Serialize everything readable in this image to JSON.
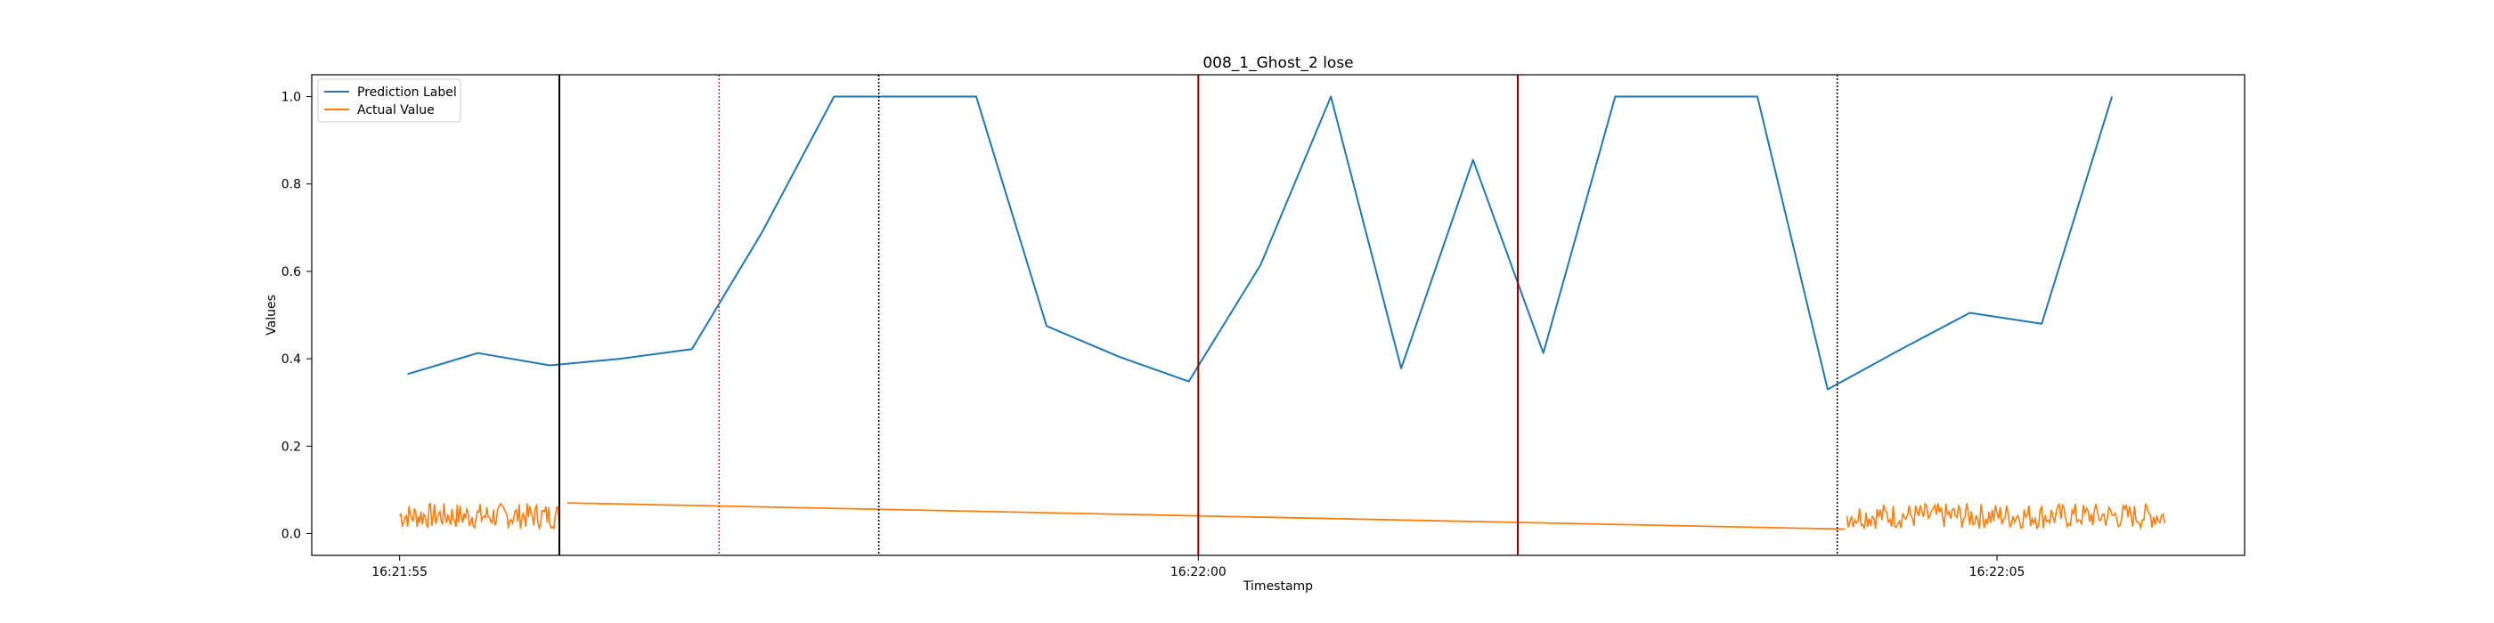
{
  "chart_data": {
    "type": "line",
    "title": "008_1_Ghost_2 lose",
    "xlabel": "Timestamp",
    "ylabel": "Values",
    "xlim": [
      -0.55,
      11.55
    ],
    "ylim": [
      -0.05,
      1.05
    ],
    "yticks": [
      0.0,
      0.2,
      0.4,
      0.6,
      0.8,
      1.0
    ],
    "ytick_labels": [
      "0.0",
      "0.2",
      "0.4",
      "0.6",
      "0.8",
      "1.0"
    ],
    "xticks": [
      0,
      5,
      10
    ],
    "xtick_labels": [
      "16:21:55",
      "16:22:00",
      "16:22:05"
    ],
    "legend_position": "upper-left",
    "colors": {
      "prediction": "#1f77b4",
      "actual": "#ff7f0e",
      "line_black": "#000000",
      "line_red": "#d62728",
      "line_darkred": "#8b0000"
    },
    "series": [
      {
        "name": "Prediction Label",
        "color": "#1f77b4",
        "x": [
          0.05,
          0.49,
          0.94,
          1.38,
          1.83,
          2.27,
          2.72,
          3.16,
          3.61,
          4.05,
          4.5,
          4.94,
          5.39,
          5.83,
          6.27,
          6.72,
          7.16,
          7.61,
          8.05,
          8.5,
          8.94,
          9.39,
          9.83,
          10.28,
          10.72
        ],
        "y": [
          0.365,
          0.413,
          0.385,
          0.4,
          0.422,
          0.69,
          1.0,
          1.0,
          1.0,
          0.475,
          0.405,
          0.348,
          0.615,
          1.0,
          0.378,
          0.855,
          0.413,
          1.0,
          1.0,
          1.0,
          0.33,
          0.42,
          0.505,
          0.48,
          1.0
        ]
      },
      {
        "name": "Actual Value",
        "color": "#ff7f0e",
        "noisy_segments": [
          {
            "x_start": 0.0,
            "x_end": 1.0,
            "count": 120,
            "ymin": 0.0,
            "ymax": 0.07
          },
          {
            "x_start": 9.06,
            "x_end": 11.05,
            "count": 200,
            "ymin": 0.0,
            "ymax": 0.07
          }
        ],
        "trend_line": {
          "x": [
            1.05,
            9.05
          ],
          "y": [
            0.07,
            0.01
          ]
        }
      }
    ],
    "vertical_lines": [
      {
        "x": 1.0,
        "style": "solid",
        "color": "#000000"
      },
      {
        "x": 2.0,
        "style": "dotted",
        "color": "#d62728"
      },
      {
        "x": 3.0,
        "style": "dotted",
        "color": "#000000"
      },
      {
        "x": 5.0,
        "style": "solid",
        "color": "#8b0000"
      },
      {
        "x": 7.0,
        "style": "solid",
        "color": "#8b0000"
      },
      {
        "x": 9.0,
        "style": "dotted",
        "color": "#000000"
      }
    ]
  }
}
